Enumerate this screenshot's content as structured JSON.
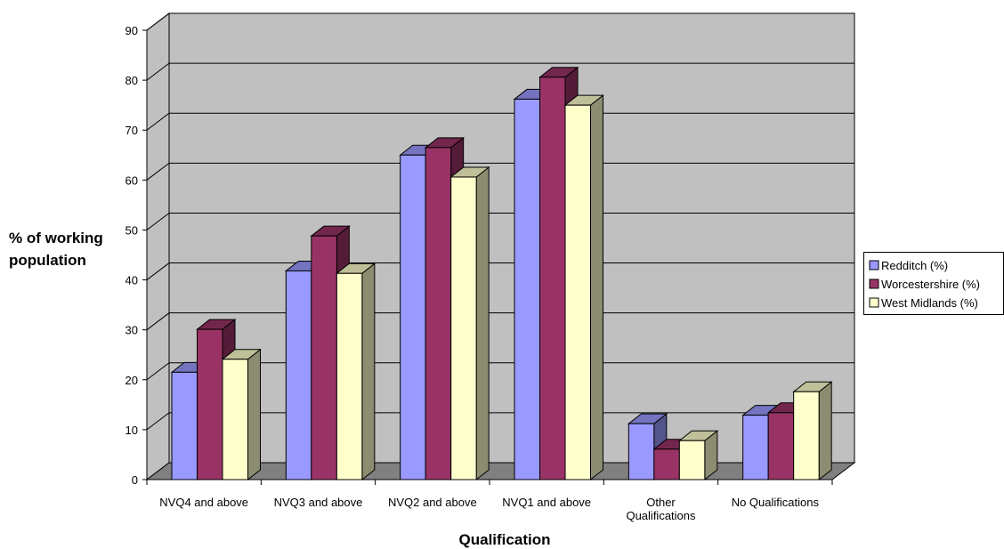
{
  "chart_data": {
    "type": "bar",
    "title": "",
    "xlabel": "Qualification",
    "ylabel": "% of working population",
    "ylim": [
      0,
      90
    ],
    "yticks": [
      0,
      10,
      20,
      30,
      40,
      50,
      60,
      70,
      80,
      90
    ],
    "grid": true,
    "legend_position": "right",
    "categories": [
      [
        "NVQ4 and above"
      ],
      [
        "NVQ3 and above"
      ],
      [
        "NVQ2 and above"
      ],
      [
        "NVQ1 and above"
      ],
      [
        "Other",
        "Qualifications"
      ],
      [
        "No Qualifications"
      ]
    ],
    "series": [
      {
        "name": "Redditch (%)",
        "color": "#9999ff",
        "values": [
          21.5,
          41.8,
          65.0,
          76.2,
          11.2,
          12.9
        ]
      },
      {
        "name": "Worcestershire (%)",
        "color": "#993366",
        "values": [
          30.1,
          48.8,
          66.5,
          80.6,
          6.1,
          13.4
        ]
      },
      {
        "name": "West Midlands (%)",
        "color": "#ffffcc",
        "values": [
          24.1,
          41.3,
          60.6,
          75.0,
          7.8,
          17.6
        ]
      }
    ],
    "colors": {
      "plot_wall": "#c0c0c0",
      "floor": "#808080",
      "gridline": "#000000"
    }
  }
}
